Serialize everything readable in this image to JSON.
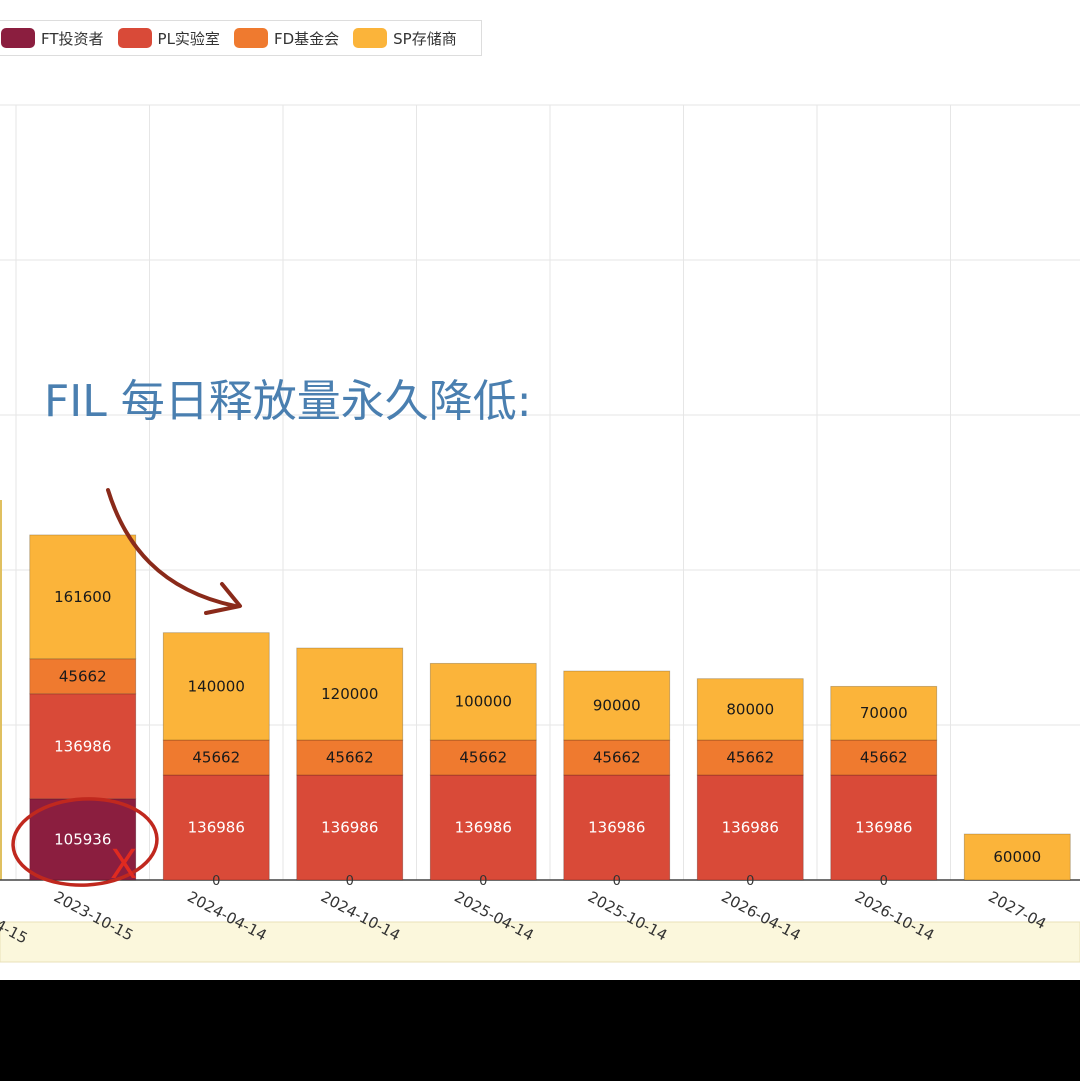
{
  "legend": {
    "items": [
      {
        "label": "FT投资者",
        "color": "#8b1e3f"
      },
      {
        "label": "PL实验室",
        "color": "#d94a38"
      },
      {
        "label": "FD基金会",
        "color": "#ef7a2f"
      },
      {
        "label": "SP存储商",
        "color": "#fbb43a"
      }
    ]
  },
  "annotation": {
    "title": "FIL 每日释放量永久降低:"
  },
  "chart_data": {
    "type": "bar",
    "stacked": true,
    "categories": [
      "2023-10-15",
      "2024-04-14",
      "2024-10-14",
      "2025-04-14",
      "2025-10-14",
      "2026-04-14",
      "2026-10-14",
      "2027-04"
    ],
    "series": [
      {
        "name": "FT投资者",
        "color": "#8b1e3f",
        "values": [
          105936,
          0,
          0,
          0,
          0,
          0,
          0,
          0
        ]
      },
      {
        "name": "PL实验室",
        "color": "#d94a38",
        "values": [
          136986,
          136986,
          136986,
          136986,
          136986,
          136986,
          136986,
          0
        ]
      },
      {
        "name": "FD基金会",
        "color": "#ef7a2f",
        "values": [
          45662,
          45662,
          45662,
          45662,
          45662,
          45662,
          45662,
          0
        ]
      },
      {
        "name": "SP存储商",
        "color": "#fbb43a",
        "values": [
          161600,
          140000,
          120000,
          100000,
          90000,
          80000,
          70000,
          60000
        ]
      }
    ],
    "zero_labels": [
      "0",
      "0",
      "0",
      "0",
      "0",
      "0",
      "0"
    ],
    "partial_tick_label": "4-15",
    "grid": true,
    "legend_position": "top-left"
  },
  "annotations_hand_drawn": {
    "cross_mark": "X"
  }
}
